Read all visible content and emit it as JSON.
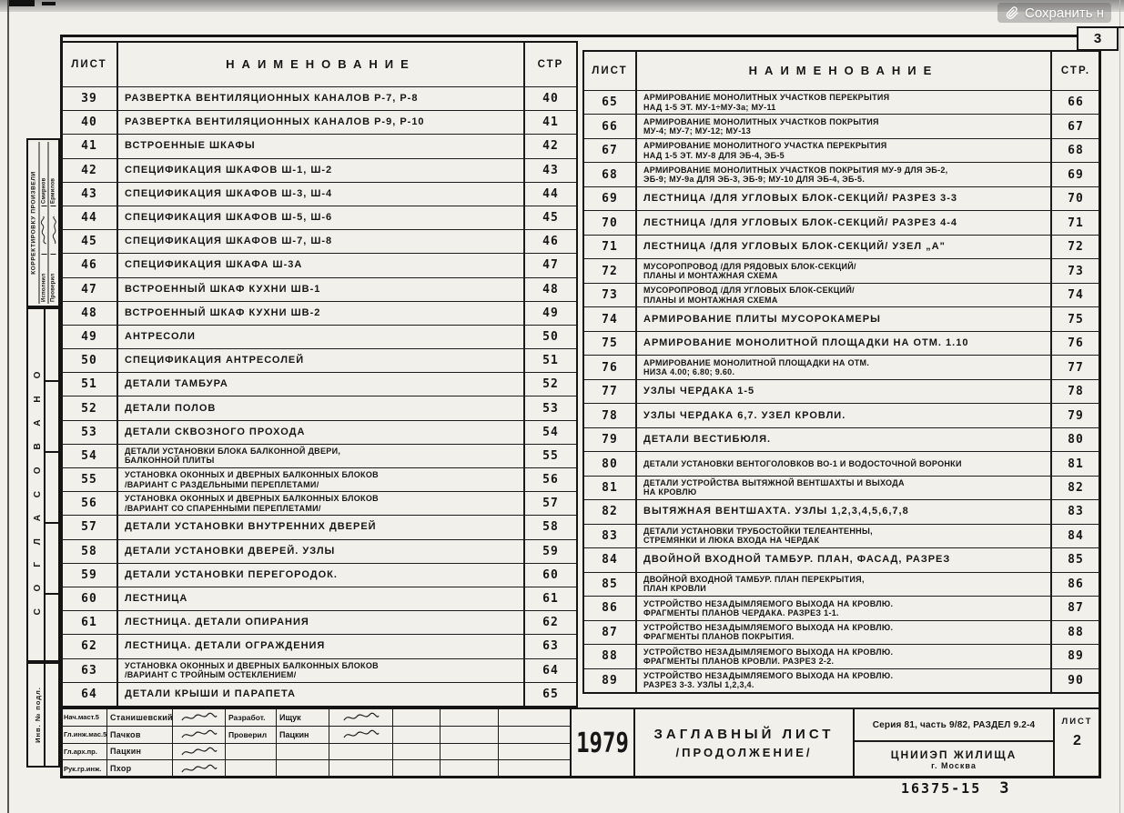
{
  "overlay": {
    "save_label": "Сохранить н"
  },
  "sheet_corner_number": "3",
  "sidebar": {
    "correction_label": "КОРРЕКТИРОВКУ ПРОИЗВЕЛИ",
    "rows": [
      {
        "label": "Исполнил",
        "name": "Смирнов"
      },
      {
        "label": "Проверил",
        "name": "Ермилов"
      }
    ],
    "agreed_label": "СОГЛАСОВАНО",
    "inventory_label": "Инв. № подл."
  },
  "tables": {
    "left": {
      "headers": {
        "sheet": "ЛИСТ",
        "name": "НАИМЕНОВАНИЕ",
        "page": "СТР"
      },
      "rows": [
        {
          "sheet": "39",
          "name": "РАЗВЕРТКА ВЕНТИЛЯЦИОННЫХ КАНАЛОВ Р-7, Р-8",
          "page": "40"
        },
        {
          "sheet": "40",
          "name": "РАЗВЕРТКА ВЕНТИЛЯЦИОННЫХ КАНАЛОВ Р-9, Р-10",
          "page": "41"
        },
        {
          "sheet": "41",
          "name": "ВСТРОЕННЫЕ ШКАФЫ",
          "page": "42"
        },
        {
          "sheet": "42",
          "name": "СПЕЦИФИКАЦИЯ ШКАФОВ Ш-1, Ш-2",
          "page": "43"
        },
        {
          "sheet": "43",
          "name": "СПЕЦИФИКАЦИЯ ШКАФОВ Ш-3, Ш-4",
          "page": "44"
        },
        {
          "sheet": "44",
          "name": "СПЕЦИФИКАЦИЯ ШКАФОВ Ш-5, Ш-6",
          "page": "45"
        },
        {
          "sheet": "45",
          "name": "СПЕЦИФИКАЦИЯ ШКАФОВ Ш-7, Ш-8",
          "page": "46"
        },
        {
          "sheet": "46",
          "name": "СПЕЦИФИКАЦИЯ ШКАФА Ш-3А",
          "page": "47"
        },
        {
          "sheet": "47",
          "name": "ВСТРОЕННЫЙ ШКАФ КУХНИ ШВ-1",
          "page": "48"
        },
        {
          "sheet": "48",
          "name": "ВСТРОЕННЫЙ ШКАФ КУХНИ ШВ-2",
          "page": "49"
        },
        {
          "sheet": "49",
          "name": "АНТРЕСОЛИ",
          "page": "50"
        },
        {
          "sheet": "50",
          "name": "СПЕЦИФИКАЦИЯ АНТРЕСОЛЕЙ",
          "page": "51"
        },
        {
          "sheet": "51",
          "name": "ДЕТАЛИ ТАМБУРА",
          "page": "52"
        },
        {
          "sheet": "52",
          "name": "ДЕТАЛИ ПОЛОВ",
          "page": "53"
        },
        {
          "sheet": "53",
          "name": "ДЕТАЛИ СКВОЗНОГО ПРОХОДА",
          "page": "54"
        },
        {
          "sheet": "54",
          "name": "ДЕТАЛИ УСТАНОВКИ БЛОКА БАЛКОННОЙ ДВЕРИ,\nБАЛКОННОЙ ПЛИТЫ",
          "page": "55"
        },
        {
          "sheet": "55",
          "name": "УСТАНОВКА ОКОННЫХ И ДВЕРНЫХ БАЛКОННЫХ БЛОКОВ\n/ВАРИАНТ С РАЗДЕЛЬНЫМИ ПЕРЕПЛЕТАМИ/",
          "page": "56"
        },
        {
          "sheet": "56",
          "name": "УСТАНОВКА ОКОННЫХ И ДВЕРНЫХ БАЛКОННЫХ БЛОКОВ\n/ВАРИАНТ СО СПАРЕННЫМИ ПЕРЕПЛЕТАМИ/",
          "page": "57"
        },
        {
          "sheet": "57",
          "name": "ДЕТАЛИ УСТАНОВКИ ВНУТРЕННИХ ДВЕРЕЙ",
          "page": "58"
        },
        {
          "sheet": "58",
          "name": "ДЕТАЛИ УСТАНОВКИ ДВЕРЕЙ. УЗЛЫ",
          "page": "59"
        },
        {
          "sheet": "59",
          "name": "ДЕТАЛИ УСТАНОВКИ ПЕРЕГОРОДОК.",
          "page": "60"
        },
        {
          "sheet": "60",
          "name": "ЛЕСТНИЦА",
          "page": "61"
        },
        {
          "sheet": "61",
          "name": "ЛЕСТНИЦА. ДЕТАЛИ ОПИРАНИЯ",
          "page": "62"
        },
        {
          "sheet": "62",
          "name": "ЛЕСТНИЦА. ДЕТАЛИ ОГРАЖДЕНИЯ",
          "page": "63"
        },
        {
          "sheet": "63",
          "name": "УСТАНОВКА ОКОННЫХ И ДВЕРНЫХ БАЛКОННЫХ БЛОКОВ\n/ВАРИАНТ С ТРОЙНЫМ ОСТЕКЛЕНИЕМ/",
          "page": "64"
        },
        {
          "sheet": "64",
          "name": "ДЕТАЛИ КРЫШИ И ПАРАПЕТА",
          "page": "65"
        }
      ]
    },
    "right": {
      "headers": {
        "sheet": "ЛИСТ",
        "name": "НАИМЕНОВАНИЕ",
        "page": "СТР."
      },
      "rows": [
        {
          "sheet": "65",
          "name": "АРМИРОВАНИЕ МОНОЛИТНЫХ УЧАСТКОВ ПЕРЕКРЫТИЯ\nНАД 1-5 ЭТ. МУ-1÷МУ-3а; МУ-11",
          "page": "66"
        },
        {
          "sheet": "66",
          "name": "АРМИРОВАНИЕ МОНОЛИТНЫХ УЧАСТКОВ ПОКРЫТИЯ\nМУ-4; МУ-7; МУ-12; МУ-13",
          "page": "67"
        },
        {
          "sheet": "67",
          "name": "АРМИРОВАНИЕ МОНОЛИТНОГО УЧАСТКА ПЕРЕКРЫТИЯ\nНАД 1-5 ЭТ. МУ-8 ДЛЯ ЭБ-4, ЭБ-5",
          "page": "68"
        },
        {
          "sheet": "68",
          "name": "АРМИРОВАНИЕ МОНОЛИТНЫХ УЧАСТКОВ ПОКРЫТИЯ МУ-9 ДЛЯ ЭБ-2,\nЭБ-9; МУ-9а ДЛЯ ЭБ-3, ЭБ-9; МУ-10 ДЛЯ ЭБ-4, ЭБ-5.",
          "page": "69"
        },
        {
          "sheet": "69",
          "name": "ЛЕСТНИЦА /ДЛЯ УГЛОВЫХ БЛОК-СЕКЦИЙ/ РАЗРЕЗ 3-3",
          "page": "70"
        },
        {
          "sheet": "70",
          "name": "ЛЕСТНИЦА /ДЛЯ УГЛОВЫХ БЛОК-СЕКЦИЙ/ РАЗРЕЗ 4-4",
          "page": "71"
        },
        {
          "sheet": "71",
          "name": "ЛЕСТНИЦА /ДЛЯ УГЛОВЫХ БЛОК-СЕКЦИЙ/ УЗЕЛ „А\"",
          "page": "72"
        },
        {
          "sheet": "72",
          "name": "МУСОРОПРОВОД /ДЛЯ РЯДОВЫХ БЛОК-СЕКЦИЙ/\nПЛАНЫ И МОНТАЖНАЯ СХЕМА",
          "page": "73"
        },
        {
          "sheet": "73",
          "name": "МУСОРОПРОВОД /ДЛЯ УГЛОВЫХ БЛОК-СЕКЦИЙ/\nПЛАНЫ И МОНТАЖНАЯ СХЕМА",
          "page": "74"
        },
        {
          "sheet": "74",
          "name": "АРМИРОВАНИЕ ПЛИТЫ МУСОРОКАМЕРЫ",
          "page": "75"
        },
        {
          "sheet": "75",
          "name": "АРМИРОВАНИЕ МОНОЛИТНОЙ ПЛОЩАДКИ НА ОТМ. 1.10",
          "page": "76"
        },
        {
          "sheet": "76",
          "name": "АРМИРОВАНИЕ МОНОЛИТНОЙ ПЛОЩАДКИ НА ОТМ.\nНИЗА 4.00; 6.80; 9.60.",
          "page": "77"
        },
        {
          "sheet": "77",
          "name": "УЗЛЫ ЧЕРДАКА 1-5",
          "page": "78"
        },
        {
          "sheet": "78",
          "name": "УЗЛЫ ЧЕРДАКА 6,7. УЗЕЛ КРОВЛИ.",
          "page": "79"
        },
        {
          "sheet": "79",
          "name": "ДЕТАЛИ ВЕСТИБЮЛЯ.",
          "page": "80"
        },
        {
          "sheet": "80",
          "name": "ДЕТАЛИ УСТАНОВКИ ВЕНТОГОЛОВКОВ ВО-1 И ВОДОСТОЧНОЙ ВОРОНКИ",
          "page": "81"
        },
        {
          "sheet": "81",
          "name": "ДЕТАЛИ УСТРОЙСТВА ВЫТЯЖНОЙ ВЕНТШАХТЫ И ВЫХОДА\nНА КРОВЛЮ",
          "page": "82"
        },
        {
          "sheet": "82",
          "name": "ВЫТЯЖНАЯ ВЕНТШАХТА. УЗЛЫ 1,2,3,4,5,6,7,8",
          "page": "83"
        },
        {
          "sheet": "83",
          "name": "ДЕТАЛИ УСТАНОВКИ ТРУБОСТОЙКИ ТЕЛЕАНТЕННЫ,\nСТРЕМЯНКИ И ЛЮКА ВХОДА НА ЧЕРДАК",
          "page": "84"
        },
        {
          "sheet": "84",
          "name": "ДВОЙНОЙ ВХОДНОЙ ТАМБУР. ПЛАН, ФАСАД, РАЗРЕЗ",
          "page": "85"
        },
        {
          "sheet": "85",
          "name": "ДВОЙНОЙ ВХОДНОЙ ТАМБУР. ПЛАН ПЕРЕКРЫТИЯ,\nПЛАН КРОВЛИ",
          "page": "86"
        },
        {
          "sheet": "86",
          "name": "УСТРОЙСТВО НЕЗАДЫМЛЯЕМОГО ВЫХОДА НА КРОВЛЮ.\nФРАГМЕНТЫ ПЛАНОВ ЧЕРДАКА. РАЗРЕЗ 1-1.",
          "page": "87"
        },
        {
          "sheet": "87",
          "name": "УСТРОЙСТВО НЕЗАДЫМЛЯЕМОГО ВЫХОДА НА КРОВЛЮ.\nФРАГМЕНТЫ ПЛАНОВ ПОКРЫТИЯ.",
          "page": "88"
        },
        {
          "sheet": "88",
          "name": "УСТРОЙСТВО НЕЗАДЫМЛЯЕМОГО ВЫХОДА НА КРОВЛЮ.\nФРАГМЕНТЫ ПЛАНОВ КРОВЛИ. РАЗРЕЗ 2-2.",
          "page": "89"
        },
        {
          "sheet": "89",
          "name": "УСТРОЙСТВО НЕЗАДЫМЛЯЕМОГО ВЫХОДА НА КРОВЛЮ.\nРАЗРЕЗ 3-3. УЗЛЫ 1,2,3,4.",
          "page": "90"
        }
      ]
    }
  },
  "title_block": {
    "signers": [
      {
        "role": "Нач.маст.5",
        "name": "Станишевский"
      },
      {
        "role": "Гл.инж.мас.5",
        "name": "Пачков"
      },
      {
        "role": "Гл.арх.пр.",
        "name": "Пацкин"
      },
      {
        "role": "Рук.гр.инж.",
        "name": "Пхор"
      }
    ],
    "developers": [
      {
        "role": "Разработ.",
        "name": "Ищук"
      },
      {
        "role": "Проверил",
        "name": "Пацкин"
      }
    ],
    "year": "1979",
    "title_line1": "ЗАГЛАВНЫЙ ЛИСТ",
    "title_line2": "/ПРОДОЛЖЕНИЕ/",
    "series": "Серия 81, часть 9/82, РАЗДЕЛ 9.2-4",
    "organization": "ЦНИИЭП ЖИЛИЩА",
    "city": "г. Москва",
    "sheet_label": "ЛИСТ",
    "sheet_number": "2",
    "document_number": "16375-15",
    "page_mark": "3"
  }
}
